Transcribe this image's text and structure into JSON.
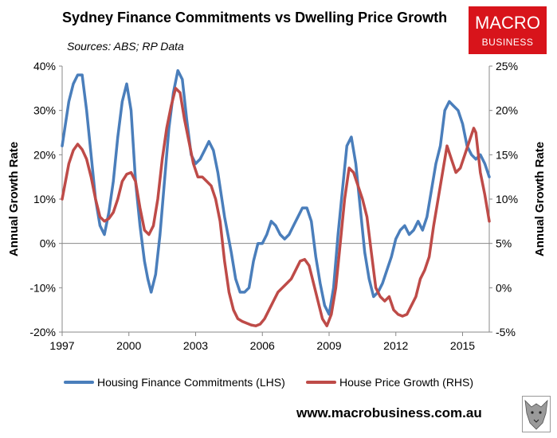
{
  "header": {
    "title": "Sydney Finance Commitments vs Dwelling Price Growth",
    "subtitle": "Sources: ABS; RP Data"
  },
  "logo": {
    "line1": "MACRO",
    "line2": "BUSINESS"
  },
  "footer": {
    "url": "www.macrobusiness.com.au"
  },
  "colors": {
    "lhs": "#4a7ebb",
    "rhs": "#be4b48"
  },
  "chart_data": {
    "type": "line",
    "title": "Sydney Finance Commitments vs Dwelling Price Growth",
    "subtitle": "Sources: ABS; RP Data",
    "xlabel": "",
    "ylabel_left": "Annual Growth Rate",
    "ylabel_right": "Annual Growth Rate",
    "x_range": [
      1997,
      2016.2
    ],
    "x_ticks": [
      "1997",
      "2000",
      "2003",
      "2006",
      "2009",
      "2012",
      "2015"
    ],
    "x_tick_values": [
      1997,
      2000,
      2003,
      2006,
      2009,
      2012,
      2015
    ],
    "ylim_left": [
      -20,
      40
    ],
    "yticks_left": [
      "-20%",
      "-10%",
      "0%",
      "10%",
      "20%",
      "30%",
      "40%"
    ],
    "ylim_right": [
      -5,
      25
    ],
    "yticks_right": [
      "-5%",
      "0%",
      "5%",
      "10%",
      "15%",
      "20%",
      "25%"
    ],
    "grid": false,
    "legend_position": "bottom",
    "series": [
      {
        "name": "Housing Finance Commitments (LHS)",
        "axis": "left",
        "color": "#4a7ebb",
        "points": [
          [
            1997.0,
            22
          ],
          [
            1997.3,
            32
          ],
          [
            1997.5,
            36
          ],
          [
            1997.7,
            38
          ],
          [
            1997.9,
            38
          ],
          [
            1998.1,
            30
          ],
          [
            1998.3,
            20
          ],
          [
            1998.5,
            10
          ],
          [
            1998.7,
            4
          ],
          [
            1998.9,
            2
          ],
          [
            1999.1,
            7
          ],
          [
            1999.3,
            14
          ],
          [
            1999.5,
            24
          ],
          [
            1999.7,
            32
          ],
          [
            1999.9,
            36
          ],
          [
            2000.1,
            30
          ],
          [
            2000.3,
            14
          ],
          [
            2000.5,
            4
          ],
          [
            2000.7,
            -4
          ],
          [
            2000.85,
            -8
          ],
          [
            2001.0,
            -11
          ],
          [
            2001.2,
            -7
          ],
          [
            2001.4,
            2
          ],
          [
            2001.6,
            14
          ],
          [
            2001.8,
            26
          ],
          [
            2002.0,
            34
          ],
          [
            2002.2,
            39
          ],
          [
            2002.4,
            37
          ],
          [
            2002.6,
            28
          ],
          [
            2002.8,
            20
          ],
          [
            2003.0,
            18
          ],
          [
            2003.2,
            19
          ],
          [
            2003.4,
            21
          ],
          [
            2003.6,
            23
          ],
          [
            2003.8,
            21
          ],
          [
            2004.0,
            16
          ],
          [
            2004.3,
            6
          ],
          [
            2004.6,
            -2
          ],
          [
            2004.8,
            -8
          ],
          [
            2005.0,
            -11
          ],
          [
            2005.2,
            -11
          ],
          [
            2005.4,
            -10
          ],
          [
            2005.6,
            -4
          ],
          [
            2005.8,
            0
          ],
          [
            2006.0,
            0
          ],
          [
            2006.2,
            2
          ],
          [
            2006.4,
            5
          ],
          [
            2006.6,
            4
          ],
          [
            2006.8,
            2
          ],
          [
            2007.0,
            1
          ],
          [
            2007.2,
            2
          ],
          [
            2007.4,
            4
          ],
          [
            2007.6,
            6
          ],
          [
            2007.8,
            8
          ],
          [
            2008.0,
            8
          ],
          [
            2008.2,
            5
          ],
          [
            2008.4,
            -3
          ],
          [
            2008.6,
            -9
          ],
          [
            2008.8,
            -14
          ],
          [
            2009.0,
            -16
          ],
          [
            2009.2,
            -10
          ],
          [
            2009.4,
            2
          ],
          [
            2009.6,
            12
          ],
          [
            2009.8,
            22
          ],
          [
            2010.0,
            24
          ],
          [
            2010.2,
            18
          ],
          [
            2010.4,
            8
          ],
          [
            2010.6,
            -2
          ],
          [
            2010.8,
            -8
          ],
          [
            2011.0,
            -12
          ],
          [
            2011.2,
            -11
          ],
          [
            2011.4,
            -9
          ],
          [
            2011.6,
            -6
          ],
          [
            2011.8,
            -3
          ],
          [
            2012.0,
            1
          ],
          [
            2012.2,
            3
          ],
          [
            2012.4,
            4
          ],
          [
            2012.6,
            2
          ],
          [
            2012.8,
            3
          ],
          [
            2013.0,
            5
          ],
          [
            2013.2,
            3
          ],
          [
            2013.4,
            6
          ],
          [
            2013.6,
            12
          ],
          [
            2013.8,
            18
          ],
          [
            2014.0,
            22
          ],
          [
            2014.2,
            30
          ],
          [
            2014.4,
            32
          ],
          [
            2014.6,
            31
          ],
          [
            2014.8,
            30
          ],
          [
            2015.0,
            27
          ],
          [
            2015.2,
            22
          ],
          [
            2015.4,
            20
          ],
          [
            2015.6,
            19
          ],
          [
            2015.8,
            20
          ],
          [
            2016.0,
            18
          ],
          [
            2016.2,
            15
          ]
        ]
      },
      {
        "name": "House Price Growth (RHS)",
        "axis": "right",
        "color": "#be4b48",
        "points": [
          [
            1997.0,
            10
          ],
          [
            1997.3,
            14
          ],
          [
            1997.5,
            15.5
          ],
          [
            1997.7,
            16.2
          ],
          [
            1997.9,
            15.6
          ],
          [
            1998.1,
            14.5
          ],
          [
            1998.3,
            12.5
          ],
          [
            1998.5,
            10
          ],
          [
            1998.7,
            8
          ],
          [
            1998.9,
            7.5
          ],
          [
            1999.1,
            7.8
          ],
          [
            1999.3,
            8.5
          ],
          [
            1999.5,
            10
          ],
          [
            1999.7,
            12
          ],
          [
            1999.9,
            12.8
          ],
          [
            2000.1,
            13
          ],
          [
            2000.3,
            12
          ],
          [
            2000.5,
            9
          ],
          [
            2000.7,
            6.5
          ],
          [
            2000.9,
            6
          ],
          [
            2001.1,
            7
          ],
          [
            2001.3,
            10
          ],
          [
            2001.5,
            14.5
          ],
          [
            2001.7,
            18
          ],
          [
            2001.9,
            20.5
          ],
          [
            2002.1,
            22.5
          ],
          [
            2002.3,
            22
          ],
          [
            2002.5,
            19
          ],
          [
            2002.7,
            16.5
          ],
          [
            2002.9,
            14
          ],
          [
            2003.1,
            12.5
          ],
          [
            2003.3,
            12.5
          ],
          [
            2003.5,
            12
          ],
          [
            2003.7,
            11.5
          ],
          [
            2003.9,
            10
          ],
          [
            2004.1,
            7.5
          ],
          [
            2004.3,
            3
          ],
          [
            2004.5,
            -0.5
          ],
          [
            2004.7,
            -2.5
          ],
          [
            2004.9,
            -3.5
          ],
          [
            2005.1,
            -3.8
          ],
          [
            2005.3,
            -4
          ],
          [
            2005.5,
            -4.2
          ],
          [
            2005.7,
            -4.3
          ],
          [
            2005.9,
            -4.1
          ],
          [
            2006.1,
            -3.5
          ],
          [
            2006.3,
            -2.5
          ],
          [
            2006.5,
            -1.5
          ],
          [
            2006.7,
            -0.5
          ],
          [
            2006.9,
            0
          ],
          [
            2007.1,
            0.5
          ],
          [
            2007.3,
            1
          ],
          [
            2007.5,
            2
          ],
          [
            2007.7,
            3
          ],
          [
            2007.9,
            3.2
          ],
          [
            2008.1,
            2.5
          ],
          [
            2008.3,
            0.5
          ],
          [
            2008.5,
            -1.5
          ],
          [
            2008.7,
            -3.5
          ],
          [
            2008.9,
            -4.3
          ],
          [
            2009.1,
            -3
          ],
          [
            2009.3,
            0
          ],
          [
            2009.5,
            5
          ],
          [
            2009.7,
            10
          ],
          [
            2009.9,
            13.5
          ],
          [
            2010.1,
            13
          ],
          [
            2010.3,
            11.5
          ],
          [
            2010.5,
            10
          ],
          [
            2010.7,
            8
          ],
          [
            2010.9,
            4
          ],
          [
            2011.1,
            0
          ],
          [
            2011.3,
            -1
          ],
          [
            2011.5,
            -1.5
          ],
          [
            2011.7,
            -1
          ],
          [
            2011.9,
            -2.5
          ],
          [
            2012.1,
            -3
          ],
          [
            2012.3,
            -3.2
          ],
          [
            2012.5,
            -3
          ],
          [
            2012.7,
            -2
          ],
          [
            2012.9,
            -1
          ],
          [
            2013.1,
            1
          ],
          [
            2013.3,
            2
          ],
          [
            2013.5,
            3.5
          ],
          [
            2013.7,
            7
          ],
          [
            2013.9,
            10
          ],
          [
            2014.1,
            13
          ],
          [
            2014.3,
            16
          ],
          [
            2014.5,
            14.5
          ],
          [
            2014.7,
            13
          ],
          [
            2014.9,
            13.5
          ],
          [
            2015.1,
            15
          ],
          [
            2015.3,
            16.5
          ],
          [
            2015.5,
            18
          ],
          [
            2015.6,
            17.5
          ],
          [
            2015.8,
            13
          ],
          [
            2016.0,
            10.5
          ],
          [
            2016.2,
            7.5
          ]
        ]
      }
    ]
  }
}
